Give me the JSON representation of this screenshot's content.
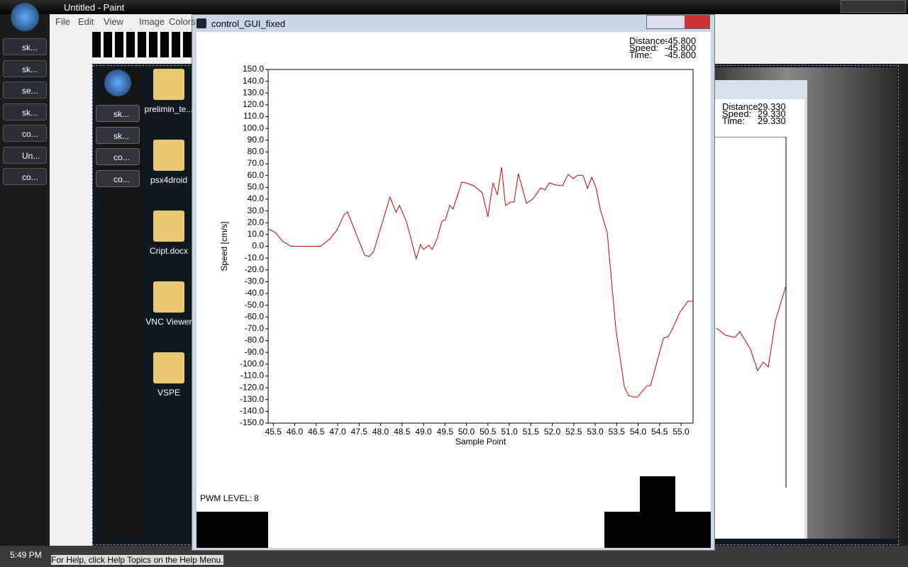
{
  "paint": {
    "title": "Untitled - Paint",
    "menu": [
      "File",
      "Edit",
      "View",
      "Image",
      "Colors"
    ],
    "status": "For Help, click Help Topics on the Help Menu."
  },
  "taskbar": {
    "items": [
      "sk...",
      "sk...",
      "se...",
      "sk...",
      "co...",
      "Un...",
      "co..."
    ],
    "clock": "5:49 PM"
  },
  "inner_taskbar": {
    "items": [
      "sk...",
      "sk...",
      "co...",
      "co..."
    ]
  },
  "desktop_icons": [
    "prelimin_te...",
    "psx4droid",
    "Cript.docx",
    "VNC Viewer",
    "VSPE"
  ],
  "gui": {
    "title": "control_GUI_fixed",
    "readouts": [
      {
        "label": "Distance:",
        "value": "-45.800"
      },
      {
        "label": "Speed:",
        "value": "-45.800"
      },
      {
        "label": "Time:",
        "value": "-45.800"
      }
    ],
    "pwm": {
      "label": "PWM LEVEL:",
      "value": 8
    }
  },
  "background_gui": {
    "readouts": [
      {
        "label": "Distance:",
        "value": "29.330"
      },
      {
        "label": "Speed:",
        "value": "29.330"
      },
      {
        "label": "Time:",
        "value": "29.330"
      }
    ]
  },
  "chart_data": {
    "type": "line",
    "xlabel": "Sample Point",
    "ylabel": "Speed [cm/s]",
    "color": "#cc0000",
    "xlim": [
      45.38,
      55.28
    ],
    "ylim": [
      -150,
      150
    ],
    "xticks": [
      {
        "value": 45.5,
        "label": "45.5"
      },
      {
        "value": 46,
        "label": "46.0"
      },
      {
        "value": 46.5,
        "label": "46.5"
      },
      {
        "value": 47,
        "label": "47.0"
      },
      {
        "value": 47.5,
        "label": "47.5"
      },
      {
        "value": 48,
        "label": "48.0"
      },
      {
        "value": 48.5,
        "label": "48.5"
      },
      {
        "value": 49,
        "label": "49.0"
      },
      {
        "value": 49.5,
        "label": "49.5"
      },
      {
        "value": 50,
        "label": "50.0"
      },
      {
        "value": 50.5,
        "label": "50.5"
      },
      {
        "value": 51,
        "label": "51.0"
      },
      {
        "value": 51.5,
        "label": "51.5"
      },
      {
        "value": 52,
        "label": "52.0"
      },
      {
        "value": 52.5,
        "label": "52.5"
      },
      {
        "value": 53,
        "label": "53.0"
      },
      {
        "value": 53.5,
        "label": "53.5"
      },
      {
        "value": 54,
        "label": "54.0"
      },
      {
        "value": 54.5,
        "label": "54.5"
      },
      {
        "value": 55,
        "label": "55.0"
      }
    ],
    "yticks": [
      {
        "value": -150,
        "label": "-150.0"
      },
      {
        "value": -140,
        "label": "-140.0"
      },
      {
        "value": -130,
        "label": "-130.0"
      },
      {
        "value": -120,
        "label": "-120.0"
      },
      {
        "value": -110,
        "label": "-110.0"
      },
      {
        "value": -100,
        "label": "-100.0"
      },
      {
        "value": -90,
        "label": "-90.0"
      },
      {
        "value": -80,
        "label": "-80.0"
      },
      {
        "value": -70,
        "label": "-70.0"
      },
      {
        "value": -60,
        "label": "-60.0"
      },
      {
        "value": -50,
        "label": "-50.0"
      },
      {
        "value": -40,
        "label": "-40.0"
      },
      {
        "value": -30,
        "label": "-30.0"
      },
      {
        "value": -20,
        "label": "-20.0"
      },
      {
        "value": -10,
        "label": "-10.0"
      },
      {
        "value": 0,
        "label": "0.0"
      },
      {
        "value": 10,
        "label": "10.0"
      },
      {
        "value": 20,
        "label": "20.0"
      },
      {
        "value": 30,
        "label": "30.0"
      },
      {
        "value": 40,
        "label": "40.0"
      },
      {
        "value": 50,
        "label": "50.0"
      },
      {
        "value": 60,
        "label": "60.0"
      },
      {
        "value": 70,
        "label": "70.0"
      },
      {
        "value": 80,
        "label": "80.0"
      },
      {
        "value": 90,
        "label": "90.0"
      },
      {
        "value": 100,
        "label": "100.0"
      },
      {
        "value": 110,
        "label": "110.0"
      },
      {
        "value": 120,
        "label": "120.0"
      },
      {
        "value": 130,
        "label": "130.0"
      },
      {
        "value": 140,
        "label": "140.0"
      },
      {
        "value": 150,
        "label": "150.0"
      }
    ],
    "x": [
      45.38,
      45.55,
      45.71,
      45.91,
      46.6,
      46.82,
      46.98,
      47.15,
      47.23,
      47.43,
      47.63,
      47.73,
      47.84,
      47.96,
      48.22,
      48.36,
      48.44,
      48.6,
      48.83,
      48.93,
      49.0,
      49.12,
      49.2,
      49.31,
      49.43,
      49.51,
      49.61,
      49.69,
      49.89,
      49.99,
      50.17,
      50.37,
      50.5,
      50.62,
      50.72,
      50.82,
      50.91,
      51.03,
      51.11,
      51.21,
      51.4,
      51.56,
      51.73,
      51.83,
      51.93,
      52.08,
      52.24,
      52.37,
      52.49,
      52.6,
      52.72,
      52.82,
      52.92,
      53.02,
      53.12,
      53.28,
      53.48,
      53.68,
      53.78,
      53.89,
      53.99,
      54.21,
      54.29,
      54.59,
      54.7,
      54.8,
      54.97,
      55.16,
      55.28
    ],
    "values": [
      14.7,
      11.7,
      4.5,
      0,
      0,
      6.3,
      13.5,
      26.8,
      29.2,
      10.5,
      -7.5,
      -8.7,
      -4.5,
      10.5,
      41.8,
      28.6,
      34.6,
      21.3,
      -10.5,
      1.5,
      -2.7,
      0.9,
      -2.7,
      5.7,
      21.3,
      22.5,
      34.6,
      31.6,
      54.4,
      53.8,
      51.4,
      45.4,
      25,
      53.8,
      43.6,
      67,
      34.6,
      37.6,
      37.6,
      61.6,
      36.4,
      40.6,
      49.6,
      47.8,
      53.8,
      52,
      51.4,
      61,
      57.4,
      60.4,
      59.8,
      49,
      58.6,
      49.6,
      31,
      11.7,
      -70,
      -119.4,
      -126.6,
      -127.8,
      -127.8,
      -118.2,
      -118.2,
      -77.9,
      -76.7,
      -70,
      -56.2,
      -46.6,
      -46.6
    ]
  }
}
